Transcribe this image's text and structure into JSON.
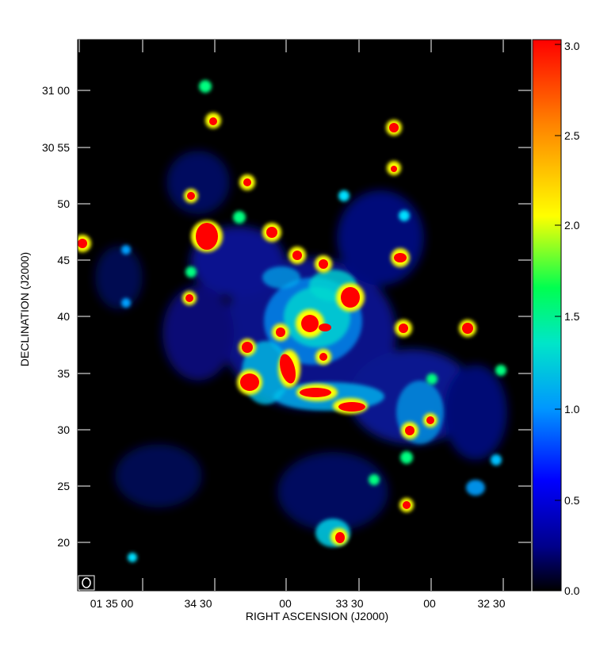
{
  "chart_data": {
    "type": "heatmap",
    "title": "",
    "xlabel": "RIGHT ASCENSION (J2000)",
    "ylabel": "DECLINATION (J2000)",
    "x_tick_labels": [
      "01 35 00",
      "34 30",
      "00",
      "33 30",
      "00",
      "32 30"
    ],
    "y_tick_labels": [
      "31 00",
      "30 55",
      "50",
      "45",
      "40",
      "35",
      "30",
      "25",
      "20"
    ],
    "colorbar": {
      "min": 0.0,
      "max": 3.0,
      "tick_labels": [
        "3.0",
        "2.5",
        "2.0",
        "1.5",
        "1.0",
        "0.5",
        "0.0"
      ],
      "colormap": "rainbow",
      "colors": [
        "#000000",
        "#0000ff",
        "#00c8ff",
        "#00ff64",
        "#ffff00",
        "#ff8000",
        "#ff0000"
      ]
    },
    "beam_marker": "ellipse",
    "grid": false,
    "legend": "none",
    "units": {
      "x": "hours minutes seconds",
      "y": "degrees arcminutes"
    }
  }
}
